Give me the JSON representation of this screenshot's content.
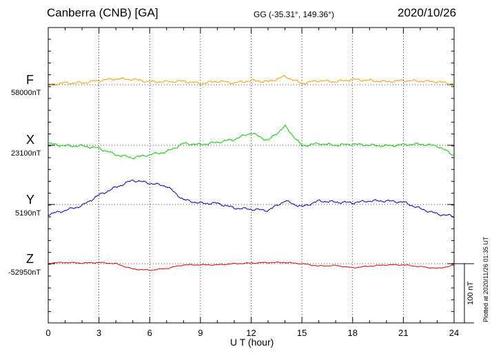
{
  "header": {
    "station": "Canberra (CNB)  [GA]",
    "coords": "GG (-35.31°, 149.36°)",
    "date": "2020/10/26"
  },
  "plotted": "Plotted at 2020/11/26 01:35 UT",
  "scale_label": "100 nT",
  "colors": {
    "F": "#f0a000",
    "X": "#00d000",
    "Y": "#0000c8",
    "Z": "#e00000"
  },
  "chart_data": {
    "type": "line",
    "title": "Canberra (CNB)  [GA]",
    "xlabel": "U T (hour)",
    "ylabel": "",
    "xlim": [
      0,
      24
    ],
    "xticks": [
      "0",
      "3",
      "6",
      "9",
      "12",
      "15",
      "18",
      "21",
      "24"
    ],
    "grid": true,
    "scale_bar_nT": 100,
    "x": [
      0,
      1,
      2,
      3,
      4,
      5,
      6,
      7,
      8,
      9,
      10,
      11,
      12,
      13,
      14,
      15,
      16,
      17,
      18,
      19,
      20,
      21,
      22,
      23,
      24
    ],
    "series": [
      {
        "name": "F",
        "baseline": "58000nT",
        "values": [
          0,
          3,
          3,
          7,
          10,
          9,
          5,
          5,
          6,
          2,
          6,
          3,
          7,
          5,
          14,
          2,
          7,
          5,
          9,
          7,
          5,
          7,
          6,
          5,
          1
        ]
      },
      {
        "name": "X",
        "baseline": "23100nT",
        "values": [
          3,
          -1,
          -1,
          -5,
          -16,
          -21,
          -16,
          -11,
          3,
          1,
          5,
          10,
          21,
          8,
          32,
          -1,
          3,
          0,
          2,
          0,
          -1,
          1,
          2,
          -1,
          -17
        ]
      },
      {
        "name": "Y",
        "baseline": "5190nT",
        "values": [
          -17,
          -10,
          -2,
          16,
          29,
          41,
          36,
          31,
          8,
          2,
          2,
          -6,
          -8,
          -10,
          6,
          -4,
          6,
          4,
          3,
          6,
          6,
          4,
          -7,
          -16,
          -20
        ]
      },
      {
        "name": "Z",
        "baseline": "-52950nT",
        "values": [
          1,
          2,
          1,
          2,
          0,
          -9,
          -11,
          -8,
          -2,
          -2,
          -2,
          0,
          1,
          2,
          2,
          0,
          -4,
          -3,
          -7,
          -4,
          -2,
          -2,
          -5,
          -8,
          -3
        ]
      }
    ]
  }
}
